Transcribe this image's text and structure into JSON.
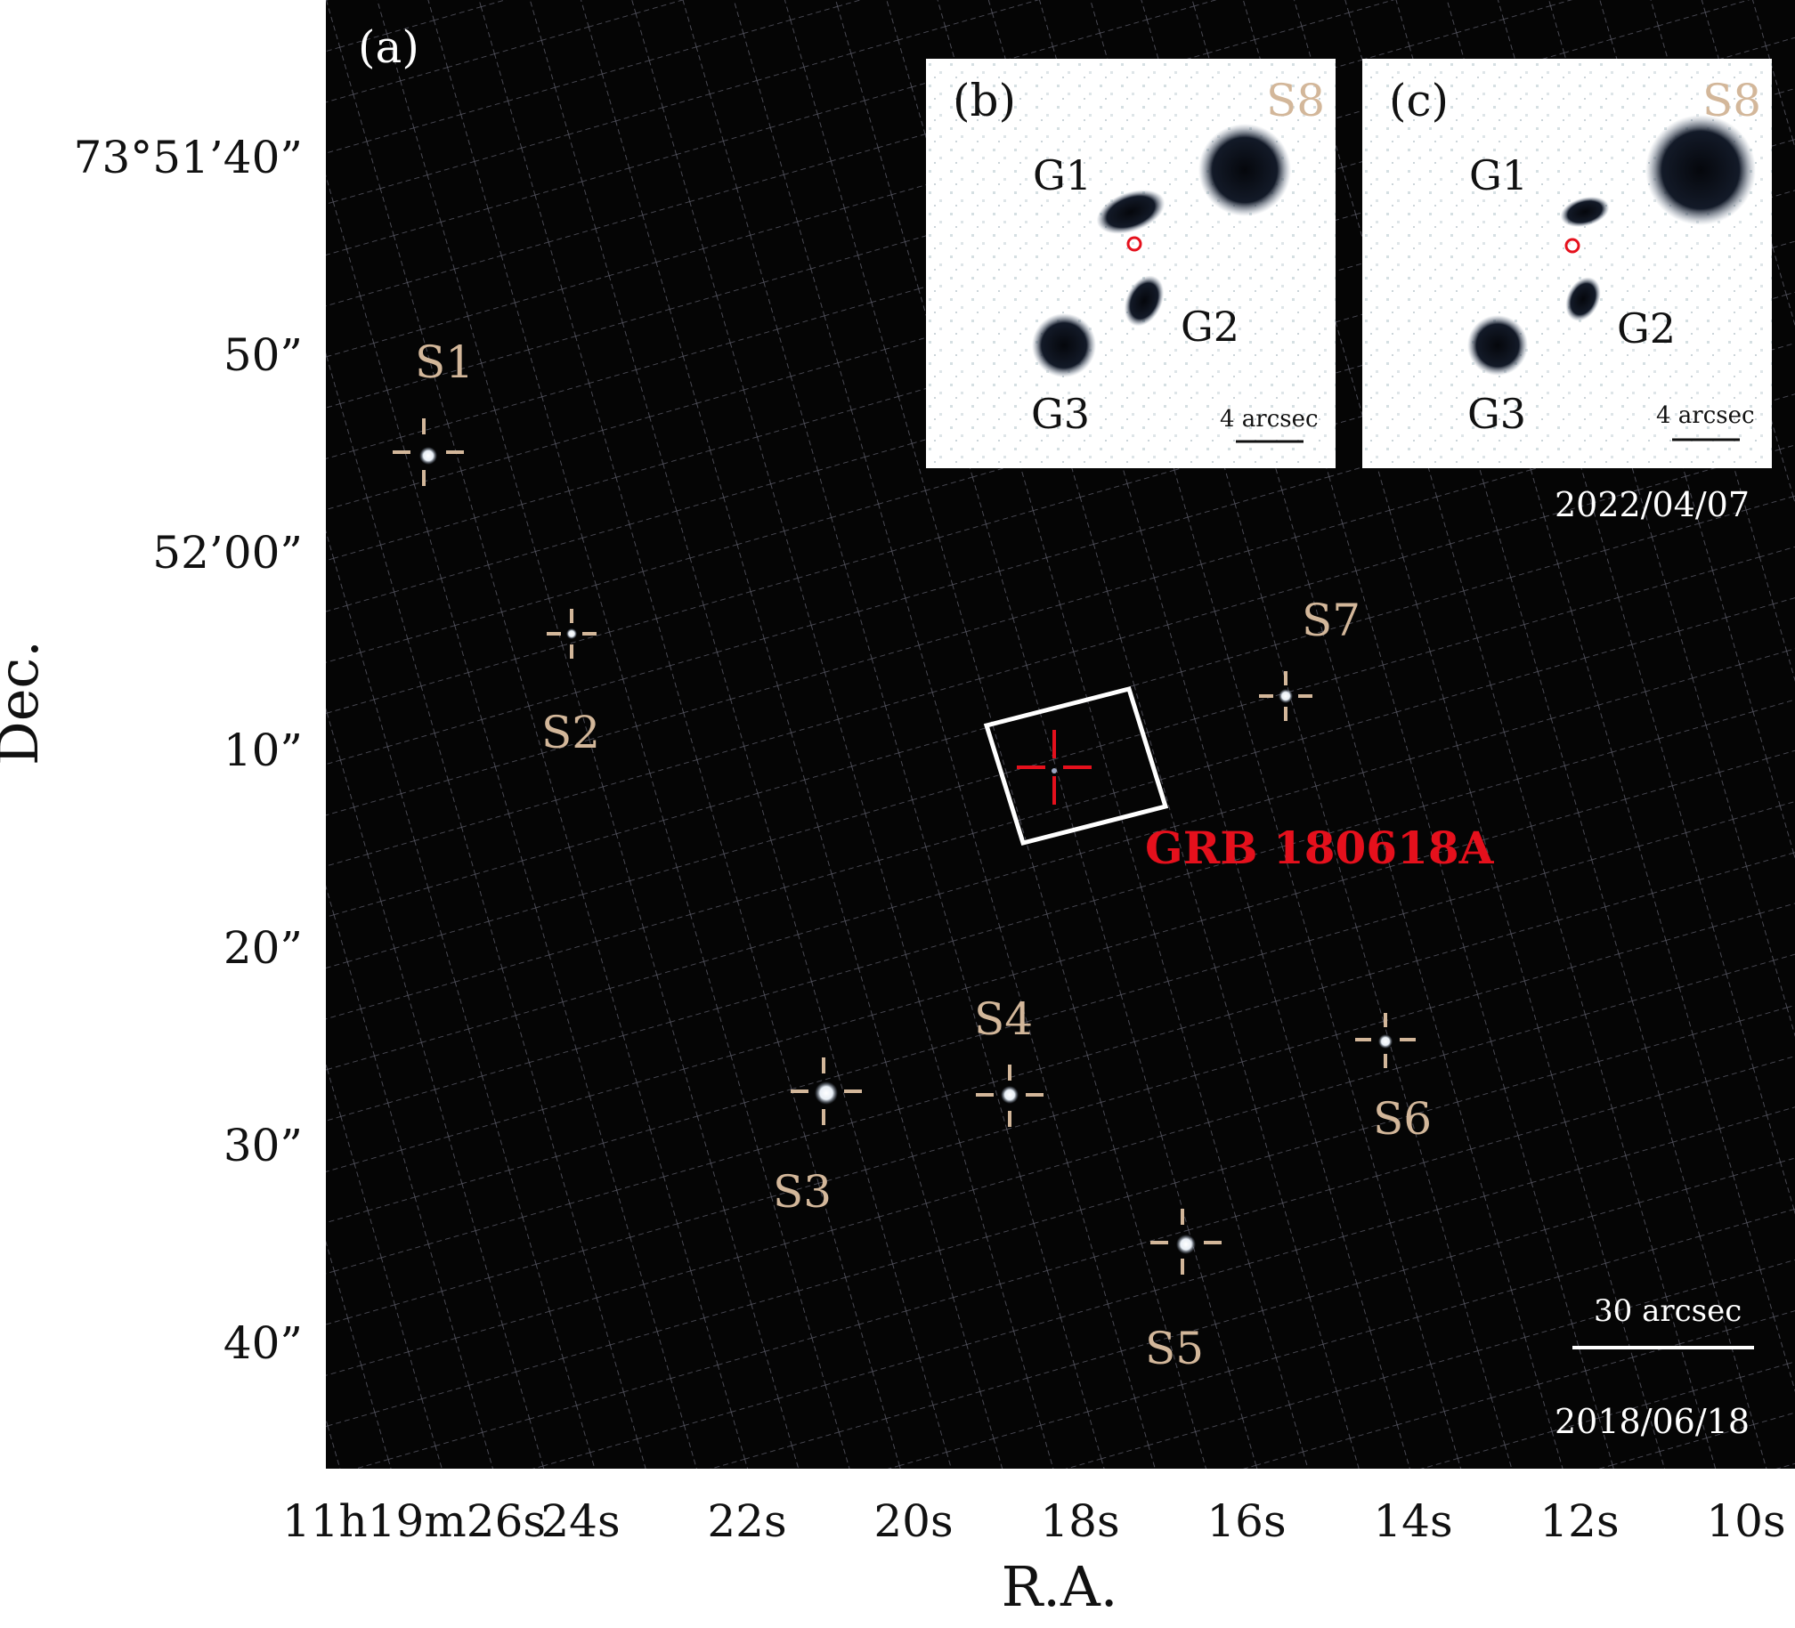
{
  "axes": {
    "y_title": "Dec.",
    "x_title": "R.A.",
    "y_ticks": [
      "73°51’40”",
      "50”",
      "52’00”",
      "10”",
      "20”",
      "30”",
      "40”"
    ],
    "x_ticks": [
      "11h19m26s",
      "24s",
      "22s",
      "20s",
      "18s",
      "16s",
      "14s",
      "12s",
      "10s"
    ]
  },
  "main_panel": {
    "label": "(a)",
    "date": "2018/06/18",
    "scale_bar_label": "30 arcsec",
    "target_label": "GRB 180618A",
    "stars": [
      "S1",
      "S2",
      "S3",
      "S4",
      "S5",
      "S6",
      "S7"
    ]
  },
  "inset_b": {
    "label": "(b)",
    "star_label": "S8",
    "galaxies": [
      "G1",
      "G2",
      "G3"
    ],
    "scale_bar_label": "4 arcsec"
  },
  "inset_c": {
    "label": "(c)",
    "star_label": "S8",
    "galaxies": [
      "G1",
      "G2",
      "G3"
    ],
    "scale_bar_label": "4 arcsec",
    "date": "2022/04/07"
  },
  "colors": {
    "background": "#050505",
    "marker": "#d3b79a",
    "target": "#e5101c",
    "grid": "#5a5a66"
  }
}
